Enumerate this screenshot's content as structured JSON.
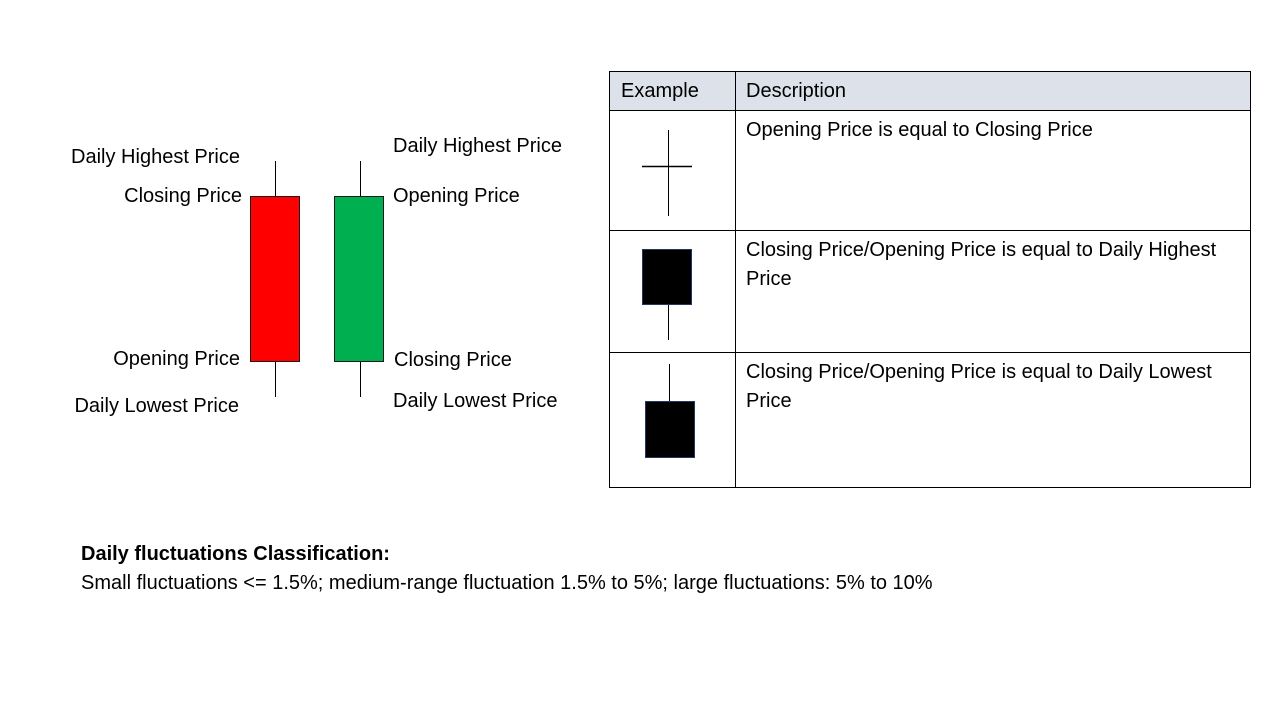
{
  "candles": {
    "red": {
      "color": "#ff0000",
      "label_high": "Daily Highest Price",
      "label_top": "Closing Price",
      "label_bottom": "Opening Price",
      "label_low": "Daily Lowest Price"
    },
    "green": {
      "color": "#00b050",
      "label_high": "Daily Highest Price",
      "label_top": "Opening Price",
      "label_bottom": "Closing Price",
      "label_low": "Daily Lowest Price"
    }
  },
  "table": {
    "header_example": "Example",
    "header_description": "Description",
    "rows": [
      {
        "icon": "doji-cross-icon",
        "description": "Opening Price is equal to Closing Price"
      },
      {
        "icon": "candle-no-upper-wick-icon",
        "description": "Closing Price/Opening Price is equal to Daily Highest Price"
      },
      {
        "icon": "candle-no-lower-wick-icon",
        "description": "Closing Price/Opening Price is equal to Daily Lowest Price"
      }
    ]
  },
  "footer": {
    "title": "Daily fluctuations Classification:",
    "text": "Small fluctuations <= 1.5%; medium-range fluctuation 1.5% to 5%; large fluctuations: 5% to 10%"
  }
}
